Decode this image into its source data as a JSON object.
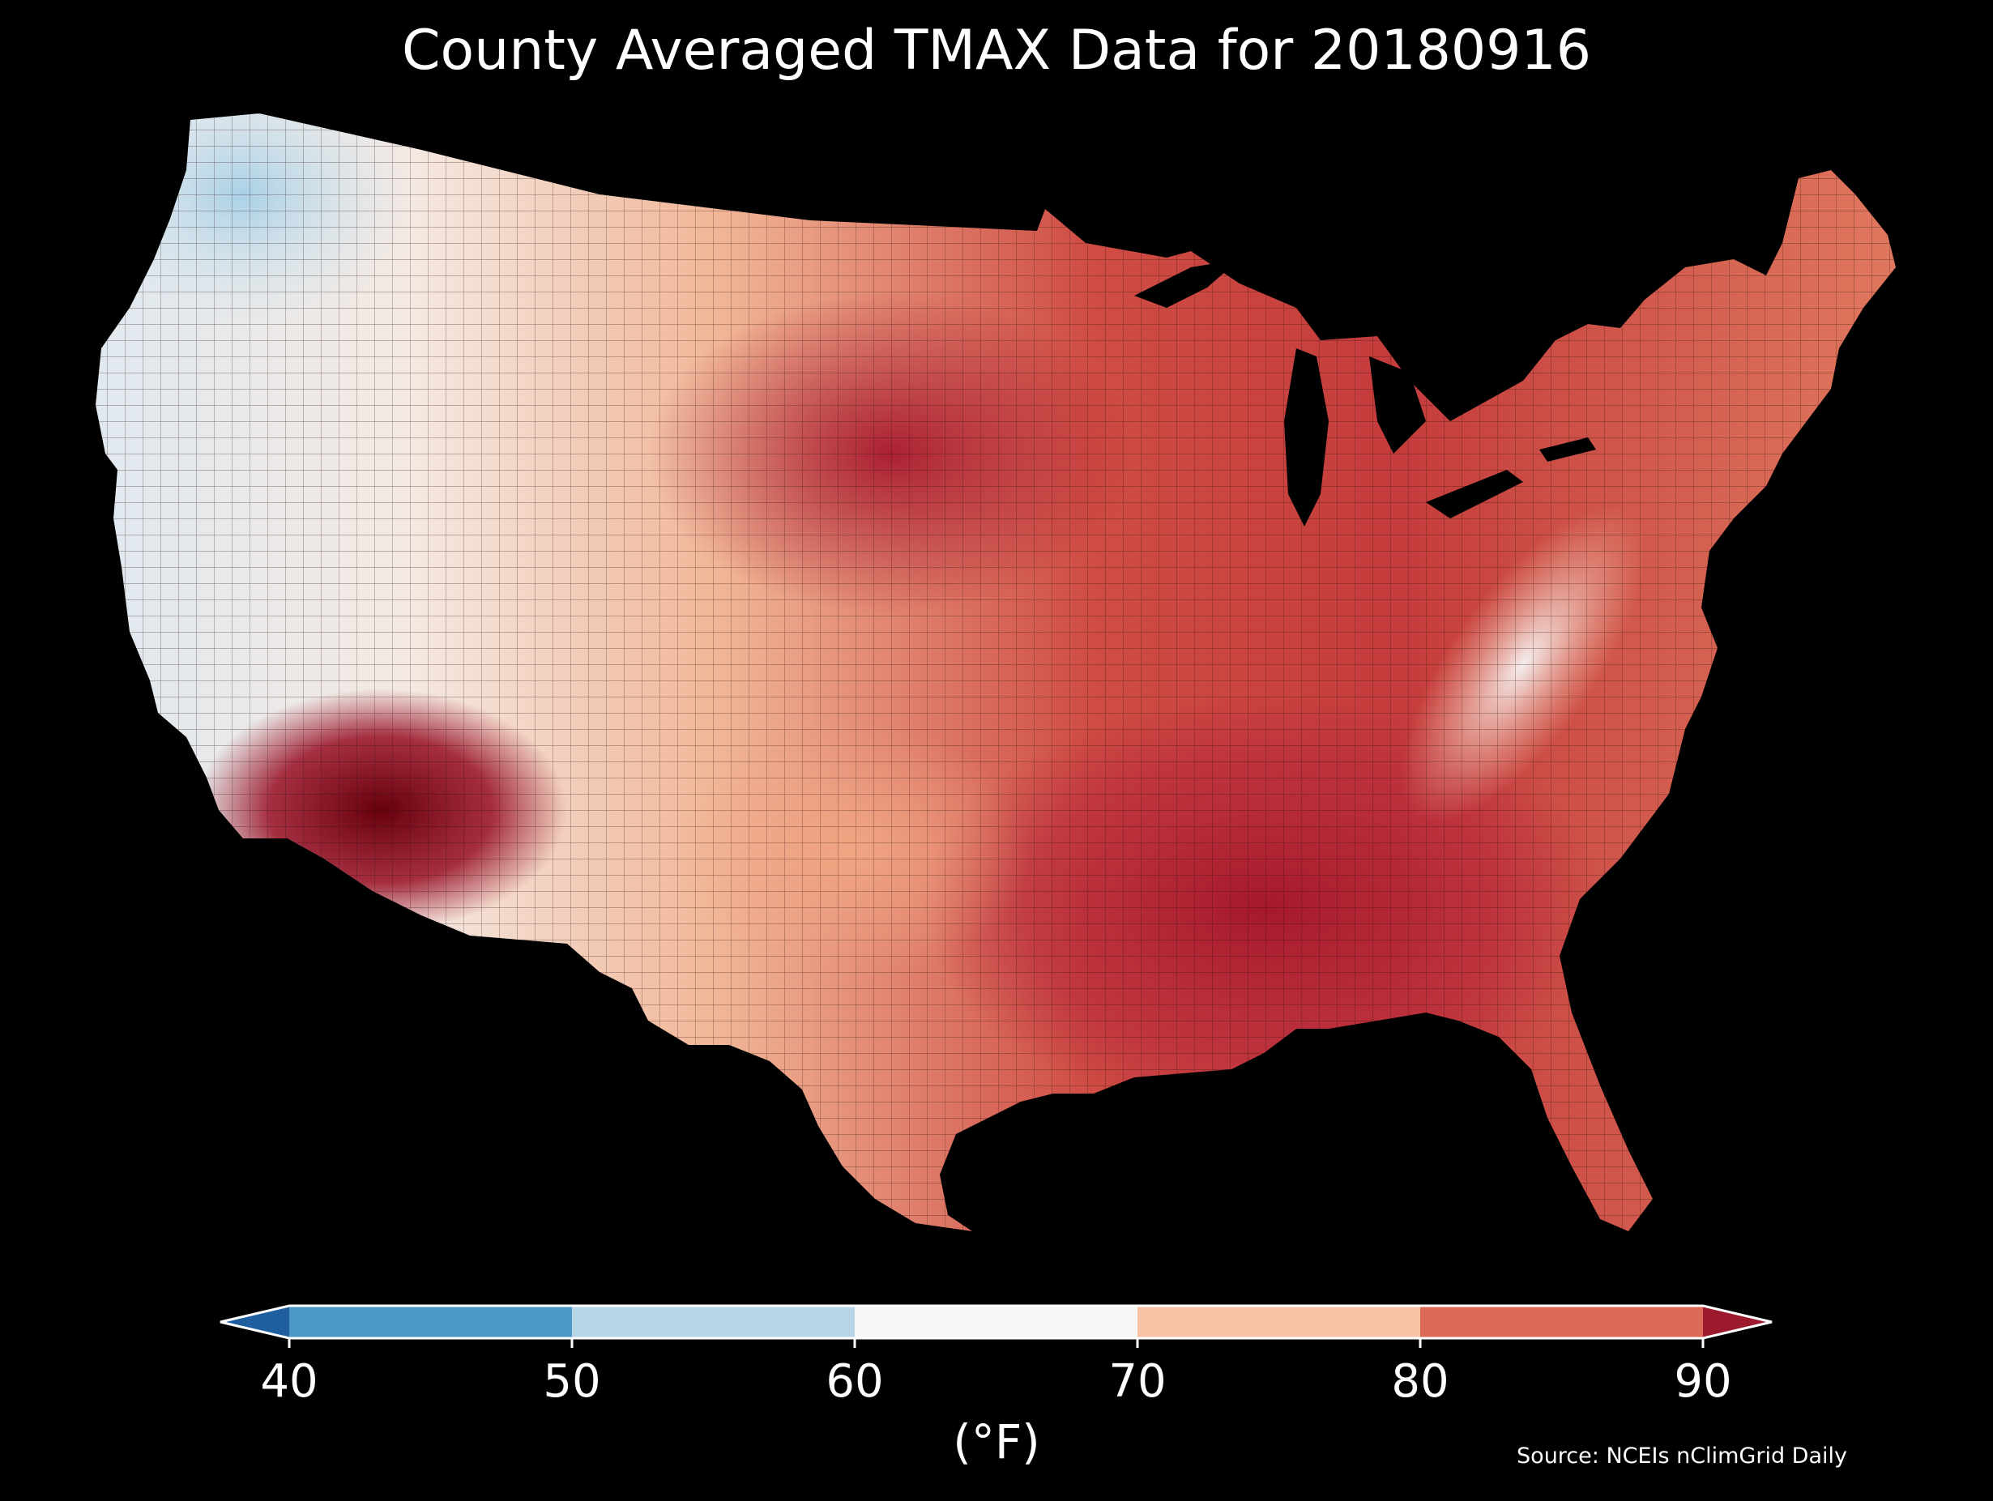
{
  "title": "County Averaged TMAX Data for 20180916",
  "source": "Source: NCEIs nClimGrid Daily",
  "colorbar": {
    "unit_label": "(°F)",
    "ticks": [
      "40",
      "50",
      "60",
      "70",
      "80",
      "90"
    ],
    "bins": [
      {
        "range": "<40",
        "color": "#1f5f9f"
      },
      {
        "range": "40-50",
        "color": "#4b97c6"
      },
      {
        "range": "50-60",
        "color": "#b6d6e8"
      },
      {
        "range": "60-70",
        "color": "#f6f6f6"
      },
      {
        "range": "70-80",
        "color": "#f7c3a6"
      },
      {
        "range": "80-90",
        "color": "#dc6a57"
      },
      {
        "range": ">90",
        "color": "#9c1a2e"
      }
    ]
  },
  "colors": {
    "background": "#000000",
    "text": "#ffffff"
  }
}
